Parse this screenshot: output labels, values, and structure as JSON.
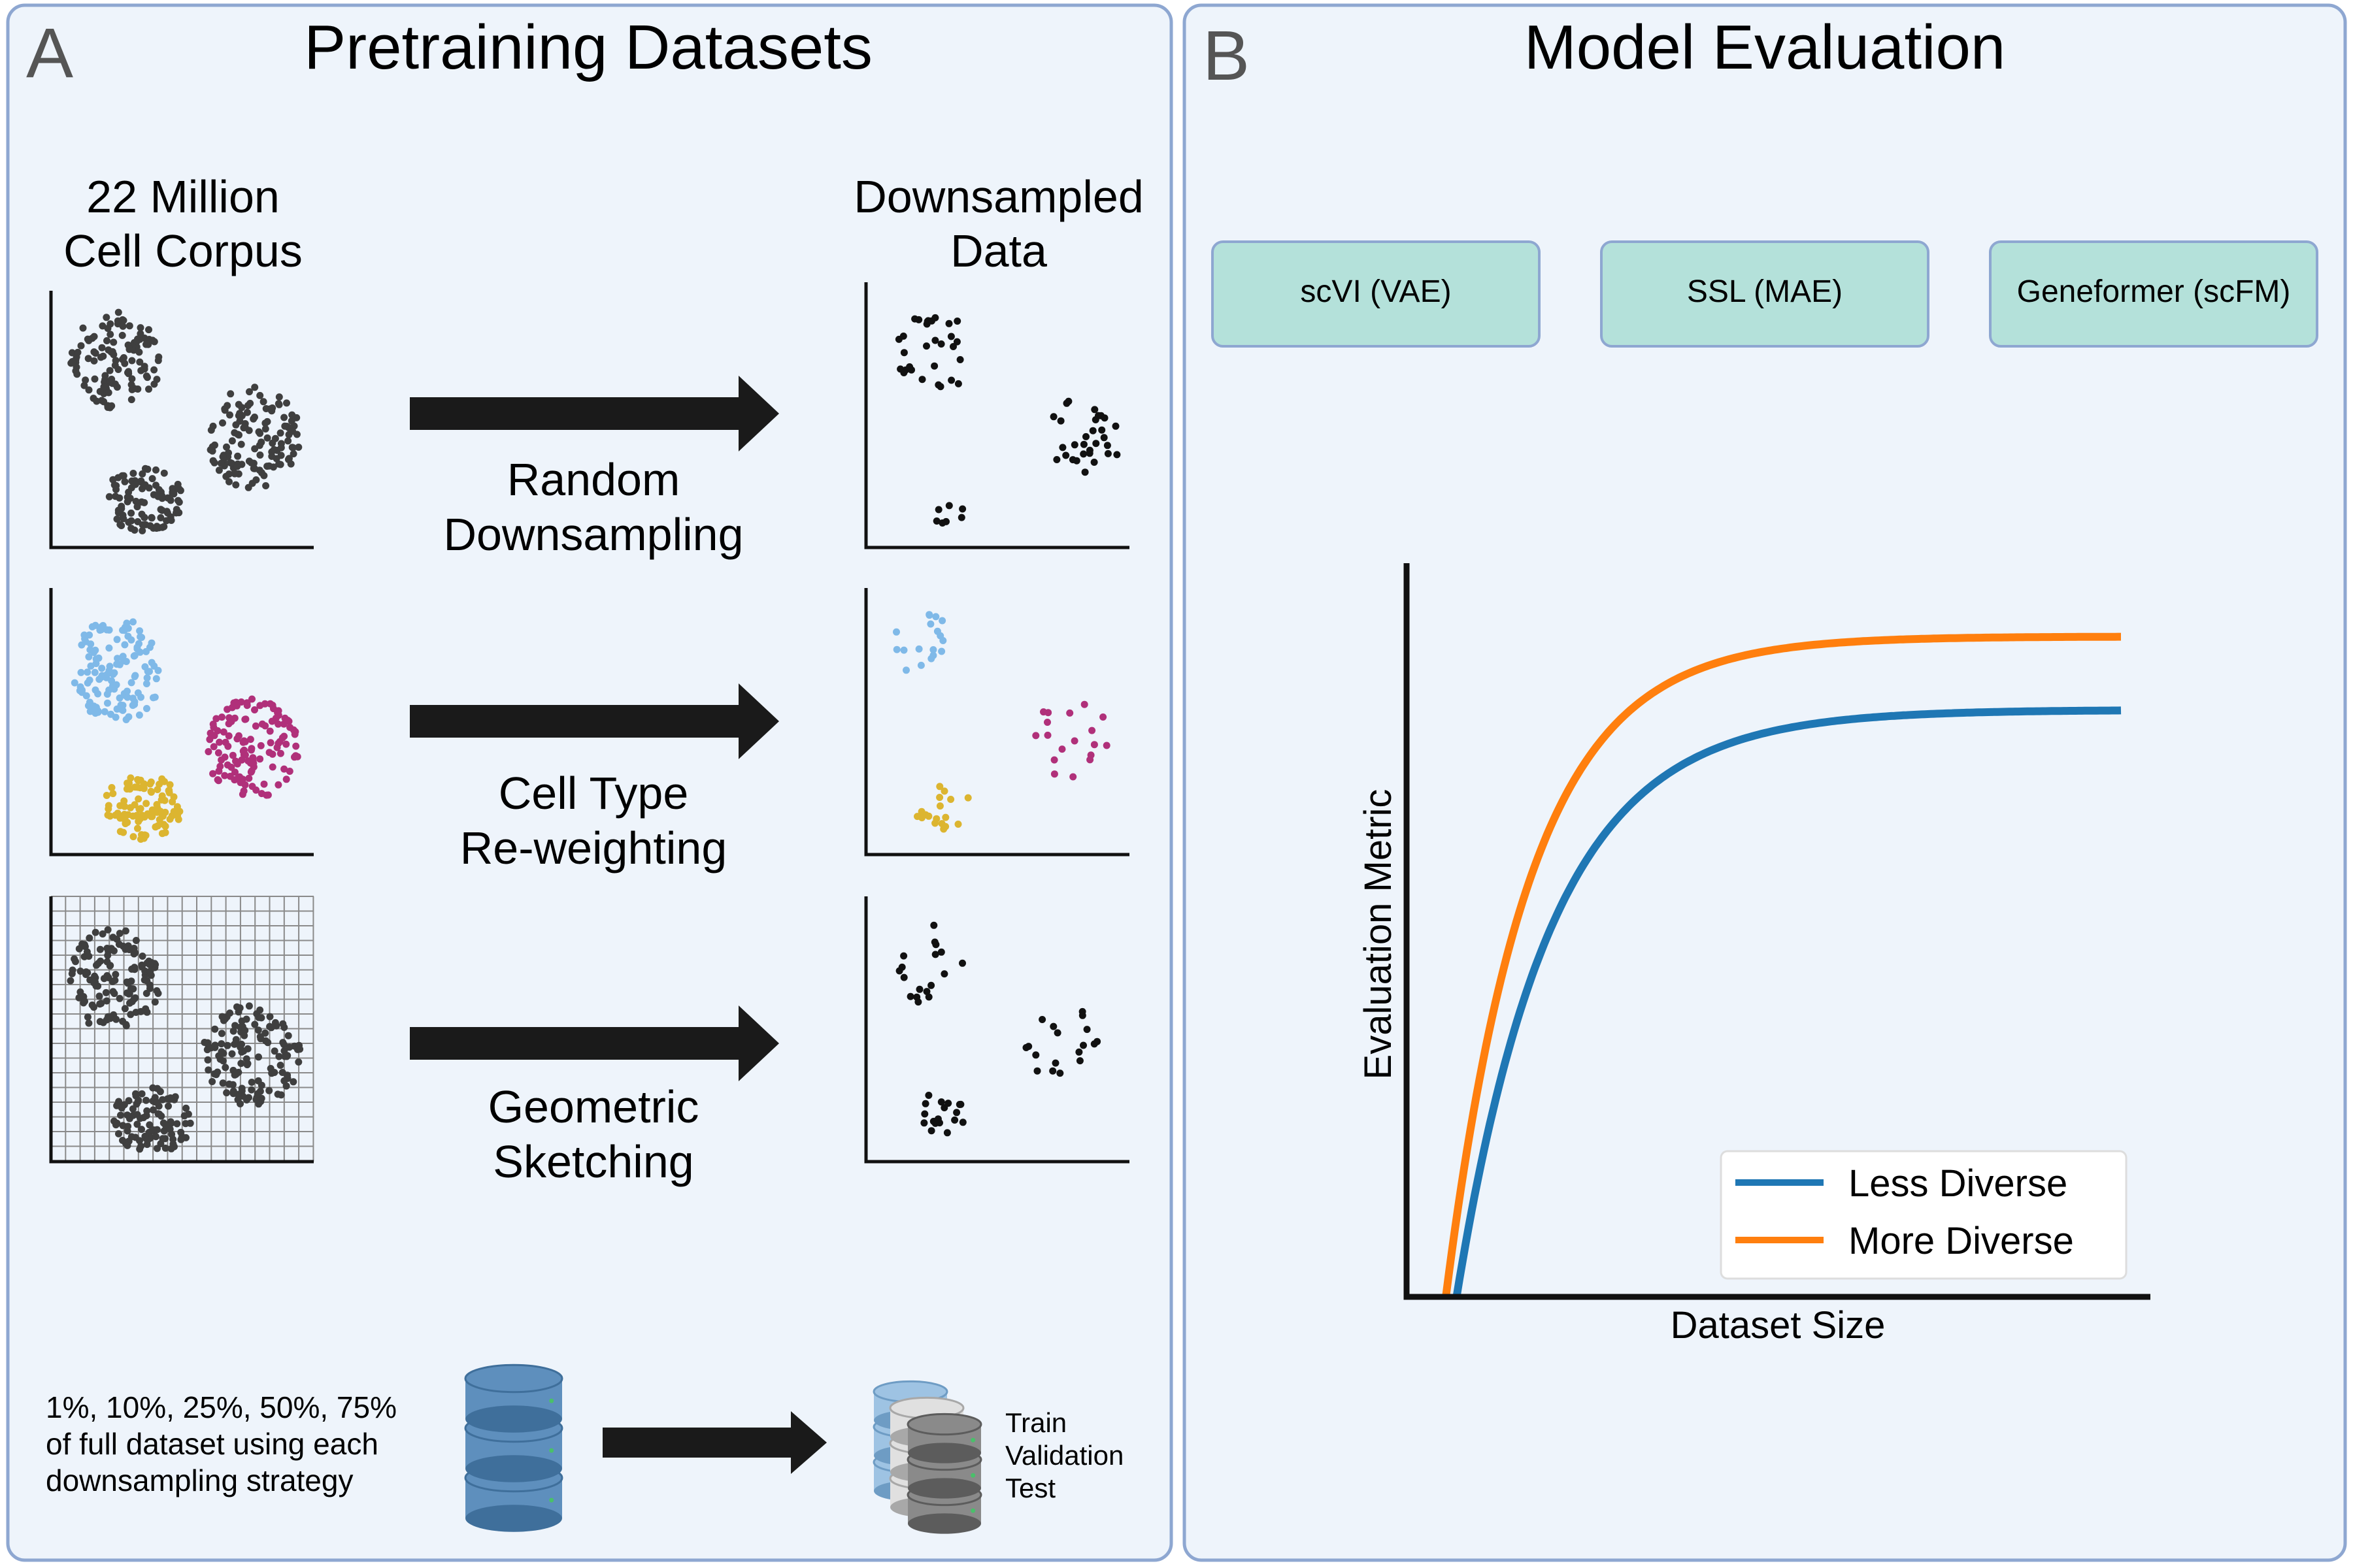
{
  "panel_a": {
    "letter": "A",
    "title": "Pretraining Datasets",
    "corpus_label": [
      "22 Million",
      "Cell Corpus"
    ],
    "downsampled_label": [
      "Downsampled",
      "Data"
    ],
    "strategies": [
      {
        "label": [
          "Random",
          "Downsampling"
        ]
      },
      {
        "label": [
          "Cell Type",
          "Re-weighting"
        ]
      },
      {
        "label": [
          "Geometric",
          "Sketching"
        ]
      }
    ],
    "fractions_note": [
      "1%, 10%, 25%, 50%, 75%",
      "of full dataset using each",
      "downsampling strategy"
    ],
    "splits": [
      "Train",
      "Validation",
      "Test"
    ]
  },
  "panel_b": {
    "letter": "B",
    "title": "Model Evaluation",
    "models": [
      "scVI (VAE)",
      "SSL (MAE)",
      "Geneformer (scFM)"
    ]
  },
  "chart_data": {
    "type": "line",
    "title": "",
    "xlabel": "Dataset Size",
    "ylabel": "Evaluation Metric",
    "axis_ticks": false,
    "legend_position": "bottom-right",
    "series": [
      {
        "name": "Less Diverse",
        "color": "#1f77b4",
        "x0": 0.07,
        "plateau": 0.8,
        "rate": 7.5
      },
      {
        "name": "More Diverse",
        "color": "#ff7f0e",
        "x0": 0.055,
        "plateau": 0.9,
        "rate": 8.5
      }
    ]
  },
  "colors": {
    "panel_bg": "#eef4fb",
    "panel_border": "#8ea7d1",
    "model_box": "#b4e1da",
    "grey_dots": "#3f3f3f",
    "black_dots": "#111111",
    "blue_cluster": "#7fb9e8",
    "magenta_cluster": "#b0307a",
    "yellow_cluster": "#dcb530",
    "db_blue": "#5e8fbd"
  }
}
